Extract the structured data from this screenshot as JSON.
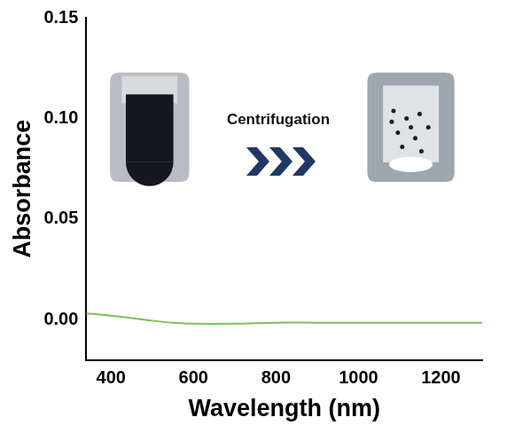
{
  "chart_data": {
    "type": "line",
    "xlabel": "Wavelength (nm)",
    "ylabel": "Absorbance",
    "x": [
      340,
      360,
      400,
      450,
      500,
      550,
      600,
      700,
      800,
      900,
      1000,
      1100,
      1200,
      1300
    ],
    "values": [
      0.003,
      0.0028,
      0.002,
      0.0008,
      -0.0005,
      -0.0015,
      -0.002,
      -0.002,
      -0.0015,
      -0.0015,
      -0.0015,
      -0.0015,
      -0.0015,
      -0.0015
    ],
    "color": "#7cc05a",
    "xlim": [
      340,
      1300
    ],
    "xticks": [
      400,
      600,
      800,
      1000,
      1200
    ],
    "ylim": [
      -0.02,
      0.15
    ],
    "yticks": [
      {
        "value": 0,
        "label": "0.00"
      },
      0.05,
      {
        "value": 0.1,
        "label": "0.10"
      },
      0.15
    ],
    "grid": false,
    "annotations": [
      "Centrifugation"
    ]
  }
}
